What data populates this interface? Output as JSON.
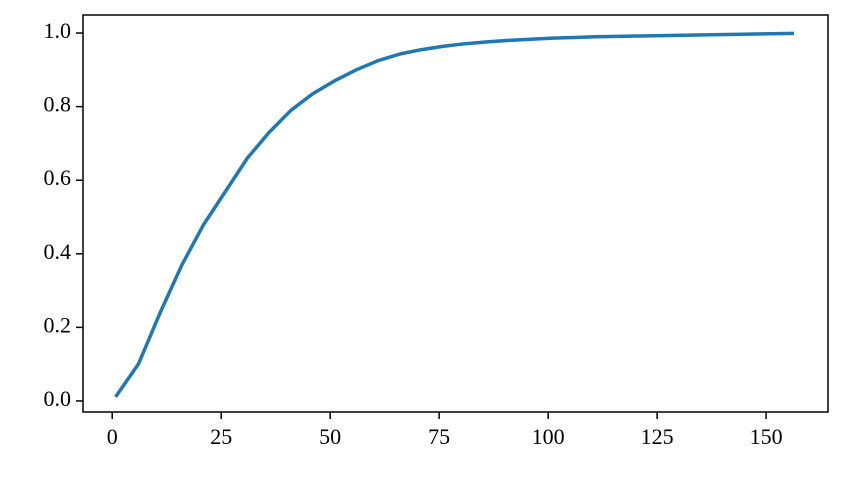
{
  "chart_data": {
    "type": "line",
    "x": [
      1,
      6,
      11,
      16,
      21,
      26,
      31,
      36,
      41,
      46,
      51,
      56,
      61,
      66,
      71,
      76,
      81,
      86,
      91,
      96,
      101,
      106,
      111,
      116,
      121,
      126,
      131,
      136,
      141,
      146,
      151,
      156
    ],
    "series": [
      {
        "color": "#1f77b4",
        "values": [
          0.015,
          0.1,
          0.24,
          0.37,
          0.48,
          0.57,
          0.66,
          0.73,
          0.79,
          0.835,
          0.87,
          0.9,
          0.925,
          0.943,
          0.955,
          0.964,
          0.971,
          0.976,
          0.98,
          0.983,
          0.986,
          0.988,
          0.99,
          0.991,
          0.992,
          0.993,
          0.994,
          0.995,
          0.996,
          0.997,
          0.998,
          0.999
        ]
      }
    ],
    "xlim": [
      -6.7,
      164.2
    ],
    "xticks": [
      0,
      25,
      50,
      75,
      100,
      125,
      150
    ],
    "ylim": [
      -0.03,
      1.049
    ],
    "yticks": [
      {
        "value": 0,
        "label": "0.0"
      },
      0.2,
      0.4,
      0.6,
      0.8,
      {
        "value": 1,
        "label": "1.0"
      }
    ],
    "grid": false
  }
}
